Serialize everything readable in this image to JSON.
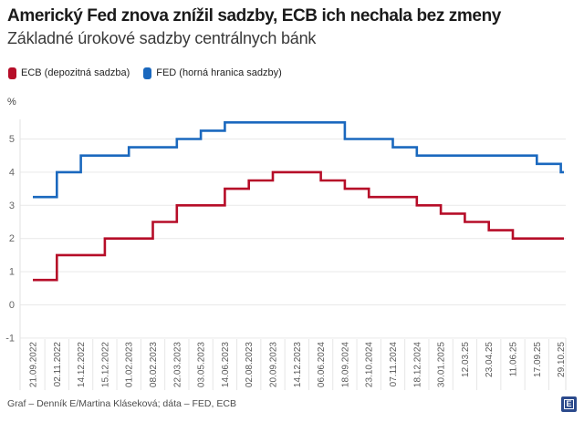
{
  "header": {
    "title": "Americký Fed znova znížil sadzby, ECB ich nechala bez zmeny",
    "subtitle": "Základné úrokové sadzby centrálnych bánk"
  },
  "legend": [
    {
      "label": "ECB (depozitná sadzba)",
      "color": "#b60d28"
    },
    {
      "label": "FED (horná hranica sadzby)",
      "color": "#1a68be"
    }
  ],
  "chart_data": {
    "type": "line",
    "subtype": "step",
    "title": "Základné úrokové sadzby centrálnych bánk",
    "xlabel": "",
    "ylabel": "%",
    "ylim": [
      -1,
      5.75
    ],
    "yticks": [
      -1,
      0,
      1,
      2,
      3,
      4,
      5
    ],
    "grid": "horizontal",
    "legend_position": "top",
    "categories": [
      "21.09.2022",
      "02.11.2022",
      "14.12.2022",
      "15.12.2022",
      "01.02.2023",
      "08.02.2023",
      "22.03.2023",
      "03.05.2023",
      "14.06.2023",
      "02.08.2023",
      "20.09.2023",
      "14.12.2023",
      "06.06.2024",
      "18.09.2024",
      "23.10.2024",
      "07.11.2024",
      "18.12.2024",
      "30.01.2025",
      "12.03.25",
      "23.04.25",
      "11.06.25",
      "17.09.25",
      "29.10.25"
    ],
    "series": [
      {
        "id": "ecb-line",
        "name": "ECB (depozitná sadzba)",
        "color": "#b60d28",
        "values": [
          0.75,
          1.5,
          1.5,
          2.0,
          2.0,
          2.5,
          3.0,
          3.0,
          3.5,
          3.75,
          4.0,
          4.0,
          3.75,
          3.5,
          3.25,
          3.25,
          3.0,
          2.75,
          2.5,
          2.25,
          2.0,
          2.0,
          2.0
        ]
      },
      {
        "id": "fed-line",
        "name": "FED (horná hranica sadzby)",
        "color": "#1a68be",
        "values": [
          3.25,
          4.0,
          4.5,
          4.5,
          4.75,
          4.75,
          5.0,
          5.25,
          5.5,
          5.5,
          5.5,
          5.5,
          5.5,
          5.0,
          5.0,
          4.75,
          4.5,
          4.5,
          4.5,
          4.5,
          4.5,
          4.25,
          4.0
        ]
      }
    ]
  },
  "footer": {
    "credit": "Graf – Denník E/Martina Kláseková; dáta – FED, ECB",
    "logo_text": "E",
    "logo_color": "#2b4a8c"
  }
}
